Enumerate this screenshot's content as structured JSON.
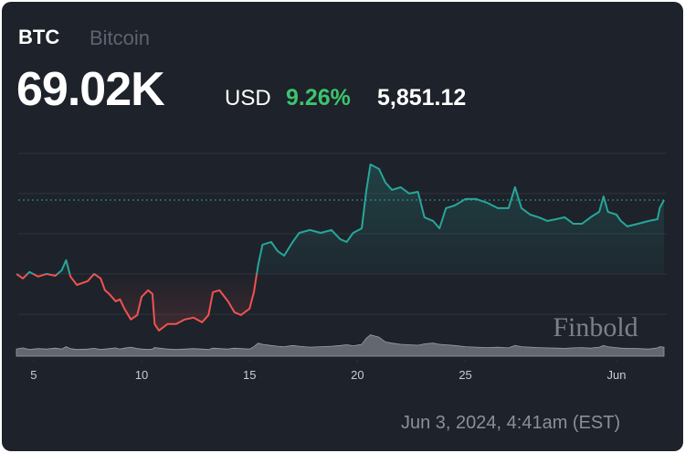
{
  "chart_data": {
    "type": "line",
    "symbol": "BTC",
    "name": "Bitcoin",
    "price": "69.02K",
    "currency": "USD",
    "change_percent": "9.26%",
    "change": "5,851.12",
    "timestamp": "Jun 3, 2024, 4:41am (EST)",
    "watermark": "Finbold",
    "x": [
      4.2,
      4.5,
      4.8,
      5.2,
      5.6,
      6.0,
      6.3,
      6.5,
      6.7,
      7.0,
      7.5,
      7.8,
      8.1,
      8.3,
      8.5,
      8.8,
      9.0,
      9.2,
      9.5,
      9.8,
      10.0,
      10.3,
      10.5,
      10.6,
      10.8,
      11.2,
      11.6,
      12.0,
      12.4,
      12.8,
      13.1,
      13.3,
      13.6,
      14.0,
      14.3,
      14.6,
      15.0,
      15.2,
      15.4,
      15.6,
      16.0,
      16.3,
      16.6,
      17.0,
      17.3,
      17.8,
      18.3,
      18.8,
      19.2,
      19.5,
      19.8,
      20.2,
      20.4,
      20.6,
      21.0,
      21.3,
      21.6,
      22.0,
      22.4,
      22.8,
      23.1,
      23.5,
      23.8,
      24.1,
      24.5,
      25.0,
      25.5,
      26.0,
      26.5,
      27.0,
      27.3,
      27.6,
      28.0,
      28.4,
      28.8,
      29.2,
      29.6,
      30.0,
      30.4,
      30.8,
      31.2,
      31.4,
      31.6,
      32.0,
      32.2,
      32.5,
      33.0,
      33.5,
      33.9,
      34.0,
      34.2
    ],
    "series": [
      {
        "name": "Price",
        "up_color": "#26a69a",
        "down_color": "#ef5350",
        "values": [
          63510,
          63170,
          63650,
          63310,
          63510,
          63370,
          63780,
          64530,
          63310,
          62690,
          62970,
          63510,
          63170,
          62290,
          62010,
          61470,
          61610,
          60920,
          60110,
          60450,
          61810,
          62290,
          62010,
          59770,
          59290,
          59770,
          59770,
          60110,
          60250,
          59900,
          60450,
          62150,
          62290,
          61470,
          60650,
          60450,
          60920,
          62150,
          64190,
          65690,
          65890,
          65210,
          64870,
          65890,
          66570,
          66780,
          66570,
          66780,
          66100,
          65890,
          66570,
          66910,
          69630,
          71670,
          71330,
          70310,
          69770,
          69970,
          69500,
          69630,
          67730,
          67460,
          66910,
          68410,
          68610,
          69090,
          69090,
          68820,
          68410,
          68410,
          69970,
          68410,
          67930,
          67730,
          67460,
          67590,
          67730,
          67250,
          67250,
          67730,
          68140,
          69290,
          68140,
          67930,
          67460,
          67050,
          67250,
          67460,
          67590,
          68410,
          69020
        ]
      },
      {
        "name": "Volume",
        "axis": "y2",
        "color": "#9aa0aa",
        "values": [
          30,
          35,
          28,
          32,
          30,
          34,
          30,
          40,
          32,
          28,
          30,
          33,
          28,
          30,
          32,
          35,
          30,
          34,
          38,
          32,
          30,
          28,
          30,
          36,
          34,
          30,
          28,
          30,
          32,
          30,
          28,
          34,
          32,
          30,
          34,
          32,
          30,
          40,
          55,
          50,
          45,
          42,
          40,
          45,
          42,
          38,
          40,
          42,
          45,
          48,
          44,
          50,
          75,
          90,
          80,
          60,
          55,
          50,
          48,
          46,
          52,
          55,
          50,
          48,
          45,
          40,
          38,
          36,
          38,
          35,
          45,
          40,
          38,
          36,
          35,
          34,
          33,
          35,
          36,
          34,
          38,
          45,
          40,
          36,
          34,
          33,
          32,
          30,
          35,
          40,
          38
        ]
      }
    ],
    "xlim": [
      4.2,
      34.2
    ],
    "xticks": [
      5,
      10,
      15,
      20,
      25,
      {
        "value": 32,
        "label": "Jun"
      }
    ],
    "ylim": [
      58500,
      73000
    ],
    "yticks": [
      60500,
      63500,
      66500,
      69500,
      72500
    ],
    "y2lim": [
      0,
      100
    ],
    "grid": true
  }
}
